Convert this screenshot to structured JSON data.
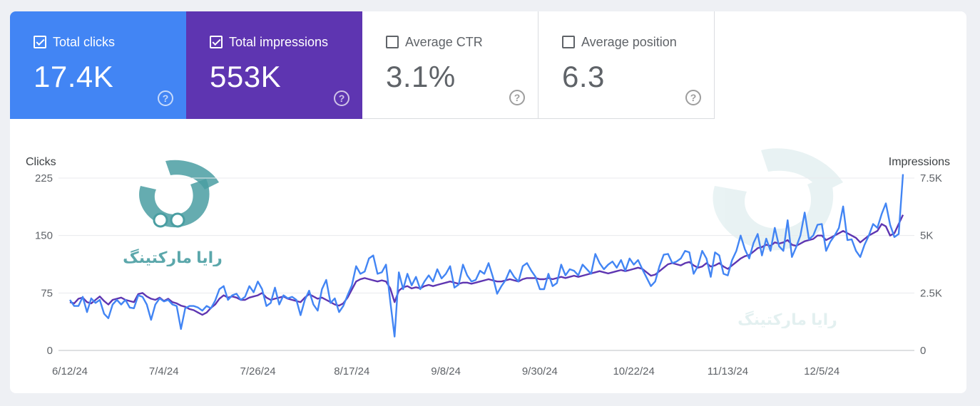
{
  "colors": {
    "clicks": "#4285f4",
    "impressions": "#5e35b1",
    "accent_teal": "#4a9ea2"
  },
  "metrics": [
    {
      "key": "clicks",
      "label": "Total clicks",
      "value": "17.4K",
      "checked": true
    },
    {
      "key": "impressions",
      "label": "Total impressions",
      "value": "553K",
      "checked": true
    },
    {
      "key": "ctr",
      "label": "Average CTR",
      "value": "3.1%",
      "checked": false
    },
    {
      "key": "position",
      "label": "Average position",
      "value": "6.3",
      "checked": false
    }
  ],
  "help_glyph": "?",
  "watermark": {
    "text": "رایا مارکتینگ"
  },
  "chart_data": {
    "type": "line",
    "left_axis_title": "Clicks",
    "right_axis_title": "Impressions",
    "left_ylim": [
      0,
      225
    ],
    "right_ylim": [
      0,
      7500
    ],
    "left_ticks": [
      "0",
      "75",
      "150",
      "225"
    ],
    "right_ticks": [
      "0",
      "2.5K",
      "5K",
      "7.5K"
    ],
    "x_ticks": [
      "6/12/24",
      "7/4/24",
      "7/26/24",
      "8/17/24",
      "9/8/24",
      "9/30/24",
      "10/22/24",
      "11/13/24",
      "12/5/24"
    ],
    "x_tick_index": [
      0,
      22,
      44,
      66,
      88,
      110,
      132,
      154,
      176
    ],
    "series": [
      {
        "name": "Clicks",
        "axis": "left",
        "color": "#4285f4",
        "values": [
          66,
          58,
          58,
          70,
          50,
          68,
          62,
          66,
          48,
          42,
          60,
          66,
          60,
          66,
          56,
          55,
          72,
          70,
          60,
          40,
          60,
          68,
          64,
          66,
          60,
          58,
          28,
          55,
          58,
          58,
          56,
          52,
          58,
          55,
          65,
          80,
          84,
          66,
          72,
          74,
          66,
          70,
          84,
          76,
          90,
          80,
          58,
          62,
          82,
          60,
          72,
          68,
          70,
          66,
          46,
          66,
          78,
          60,
          52,
          80,
          92,
          62,
          68,
          50,
          58,
          72,
          85,
          110,
          100,
          103,
          120,
          124,
          100,
          102,
          112,
          64,
          18,
          102,
          80,
          100,
          85,
          96,
          80,
          90,
          98,
          90,
          106,
          94,
          100,
          110,
          82,
          86,
          112,
          98,
          90,
          92,
          104,
          100,
          114,
          96,
          74,
          84,
          92,
          105,
          96,
          90,
          110,
          114,
          104,
          96,
          80,
          80,
          100,
          84,
          88,
          112,
          98,
          106,
          104,
          98,
          112,
          106,
          100,
          126,
          114,
          106,
          112,
          116,
          108,
          118,
          104,
          120,
          112,
          118,
          106,
          95,
          84,
          90,
          110,
          125,
          126,
          114,
          116,
          120,
          130,
          128,
          100,
          110,
          130,
          120,
          96,
          128,
          124,
          100,
          98,
          118,
          130,
          150,
          132,
          120,
          140,
          152,
          124,
          146,
          130,
          160,
          136,
          130,
          170,
          122,
          135,
          150,
          180,
          145,
          150,
          164,
          165,
          130,
          142,
          150,
          160,
          188,
          144,
          145,
          130,
          122,
          138,
          150,
          165,
          160,
          178,
          192,
          164,
          148,
          152,
          230
        ],
        "_trim": 178
      },
      {
        "name": "Impressions",
        "axis": "right",
        "color": "#5e35b1",
        "values": [
          2100,
          2050,
          2250,
          2300,
          2100,
          2050,
          2200,
          2350,
          2150,
          2000,
          2200,
          2250,
          2300,
          2200,
          2150,
          2100,
          2450,
          2500,
          2350,
          2250,
          2200,
          2300,
          2150,
          2250,
          2100,
          2050,
          1950,
          1900,
          1800,
          1750,
          1650,
          1550,
          1650,
          1850,
          2000,
          2250,
          2400,
          2300,
          2350,
          2300,
          2200,
          2200,
          2300,
          2350,
          2400,
          2500,
          2300,
          2200,
          2250,
          2300,
          2350,
          2250,
          2200,
          2150,
          2100,
          2300,
          2450,
          2350,
          2250,
          2300,
          2200,
          2100,
          2000,
          1950,
          2050,
          2300,
          2650,
          3000,
          3100,
          3150,
          3100,
          3050,
          3000,
          3050,
          3000,
          2700,
          2100,
          2600,
          2750,
          2800,
          2700,
          2750,
          2700,
          2800,
          2850,
          2800,
          2850,
          2900,
          2950,
          3000,
          2950,
          2900,
          2950,
          2950,
          2900,
          2950,
          3000,
          3050,
          3100,
          3050,
          3000,
          3000,
          3050,
          3100,
          3050,
          3000,
          3100,
          3150,
          3150,
          3150,
          3100,
          3100,
          3150,
          3100,
          3150,
          3200,
          3150,
          3200,
          3250,
          3200,
          3250,
          3300,
          3350,
          3400,
          3450,
          3400,
          3350,
          3400,
          3450,
          3500,
          3450,
          3500,
          3550,
          3600,
          3550,
          3400,
          3250,
          3300,
          3450,
          3600,
          3750,
          3800,
          3750,
          3700,
          3800,
          3850,
          3700,
          3600,
          3650,
          3800,
          3650,
          3700,
          3800,
          3650,
          3550,
          3700,
          3850,
          4000,
          4100,
          4150,
          4300,
          4450,
          4500,
          4600,
          4550,
          4700,
          4650,
          4700,
          4800,
          4600,
          4550,
          4650,
          4750,
          4800,
          4850,
          5000,
          5000,
          4800,
          4900,
          5000,
          5100,
          5200,
          5100,
          5000,
          4900,
          4700,
          4850,
          5000,
          5100,
          5200,
          5500,
          5400,
          5000,
          5100,
          5500,
          5900
        ]
      }
    ]
  }
}
